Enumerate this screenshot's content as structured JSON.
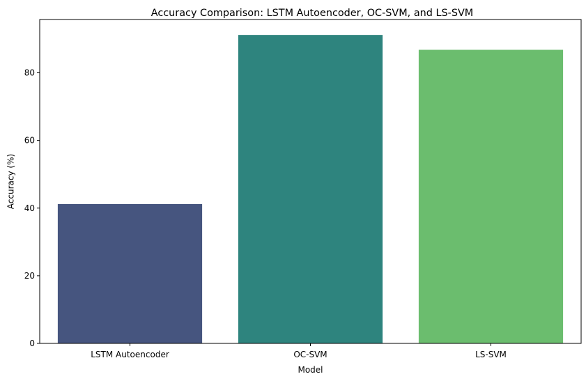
{
  "chart_data": {
    "type": "bar",
    "title": "Accuracy Comparison: LSTM Autoencoder, OC-SVM, and LS-SVM",
    "xlabel": "Model",
    "ylabel": "Accuracy (%)",
    "categories": [
      "LSTM Autoencoder",
      "OC-SVM",
      "LS-SVM"
    ],
    "values": [
      41.2,
      91.2,
      86.8
    ],
    "colors": [
      "#46557f",
      "#2e847e",
      "#6bbd6e"
    ],
    "ylim": [
      0,
      95.76
    ],
    "yticks": [
      0,
      20,
      40,
      60,
      80
    ],
    "grid": false,
    "legend": "none"
  }
}
